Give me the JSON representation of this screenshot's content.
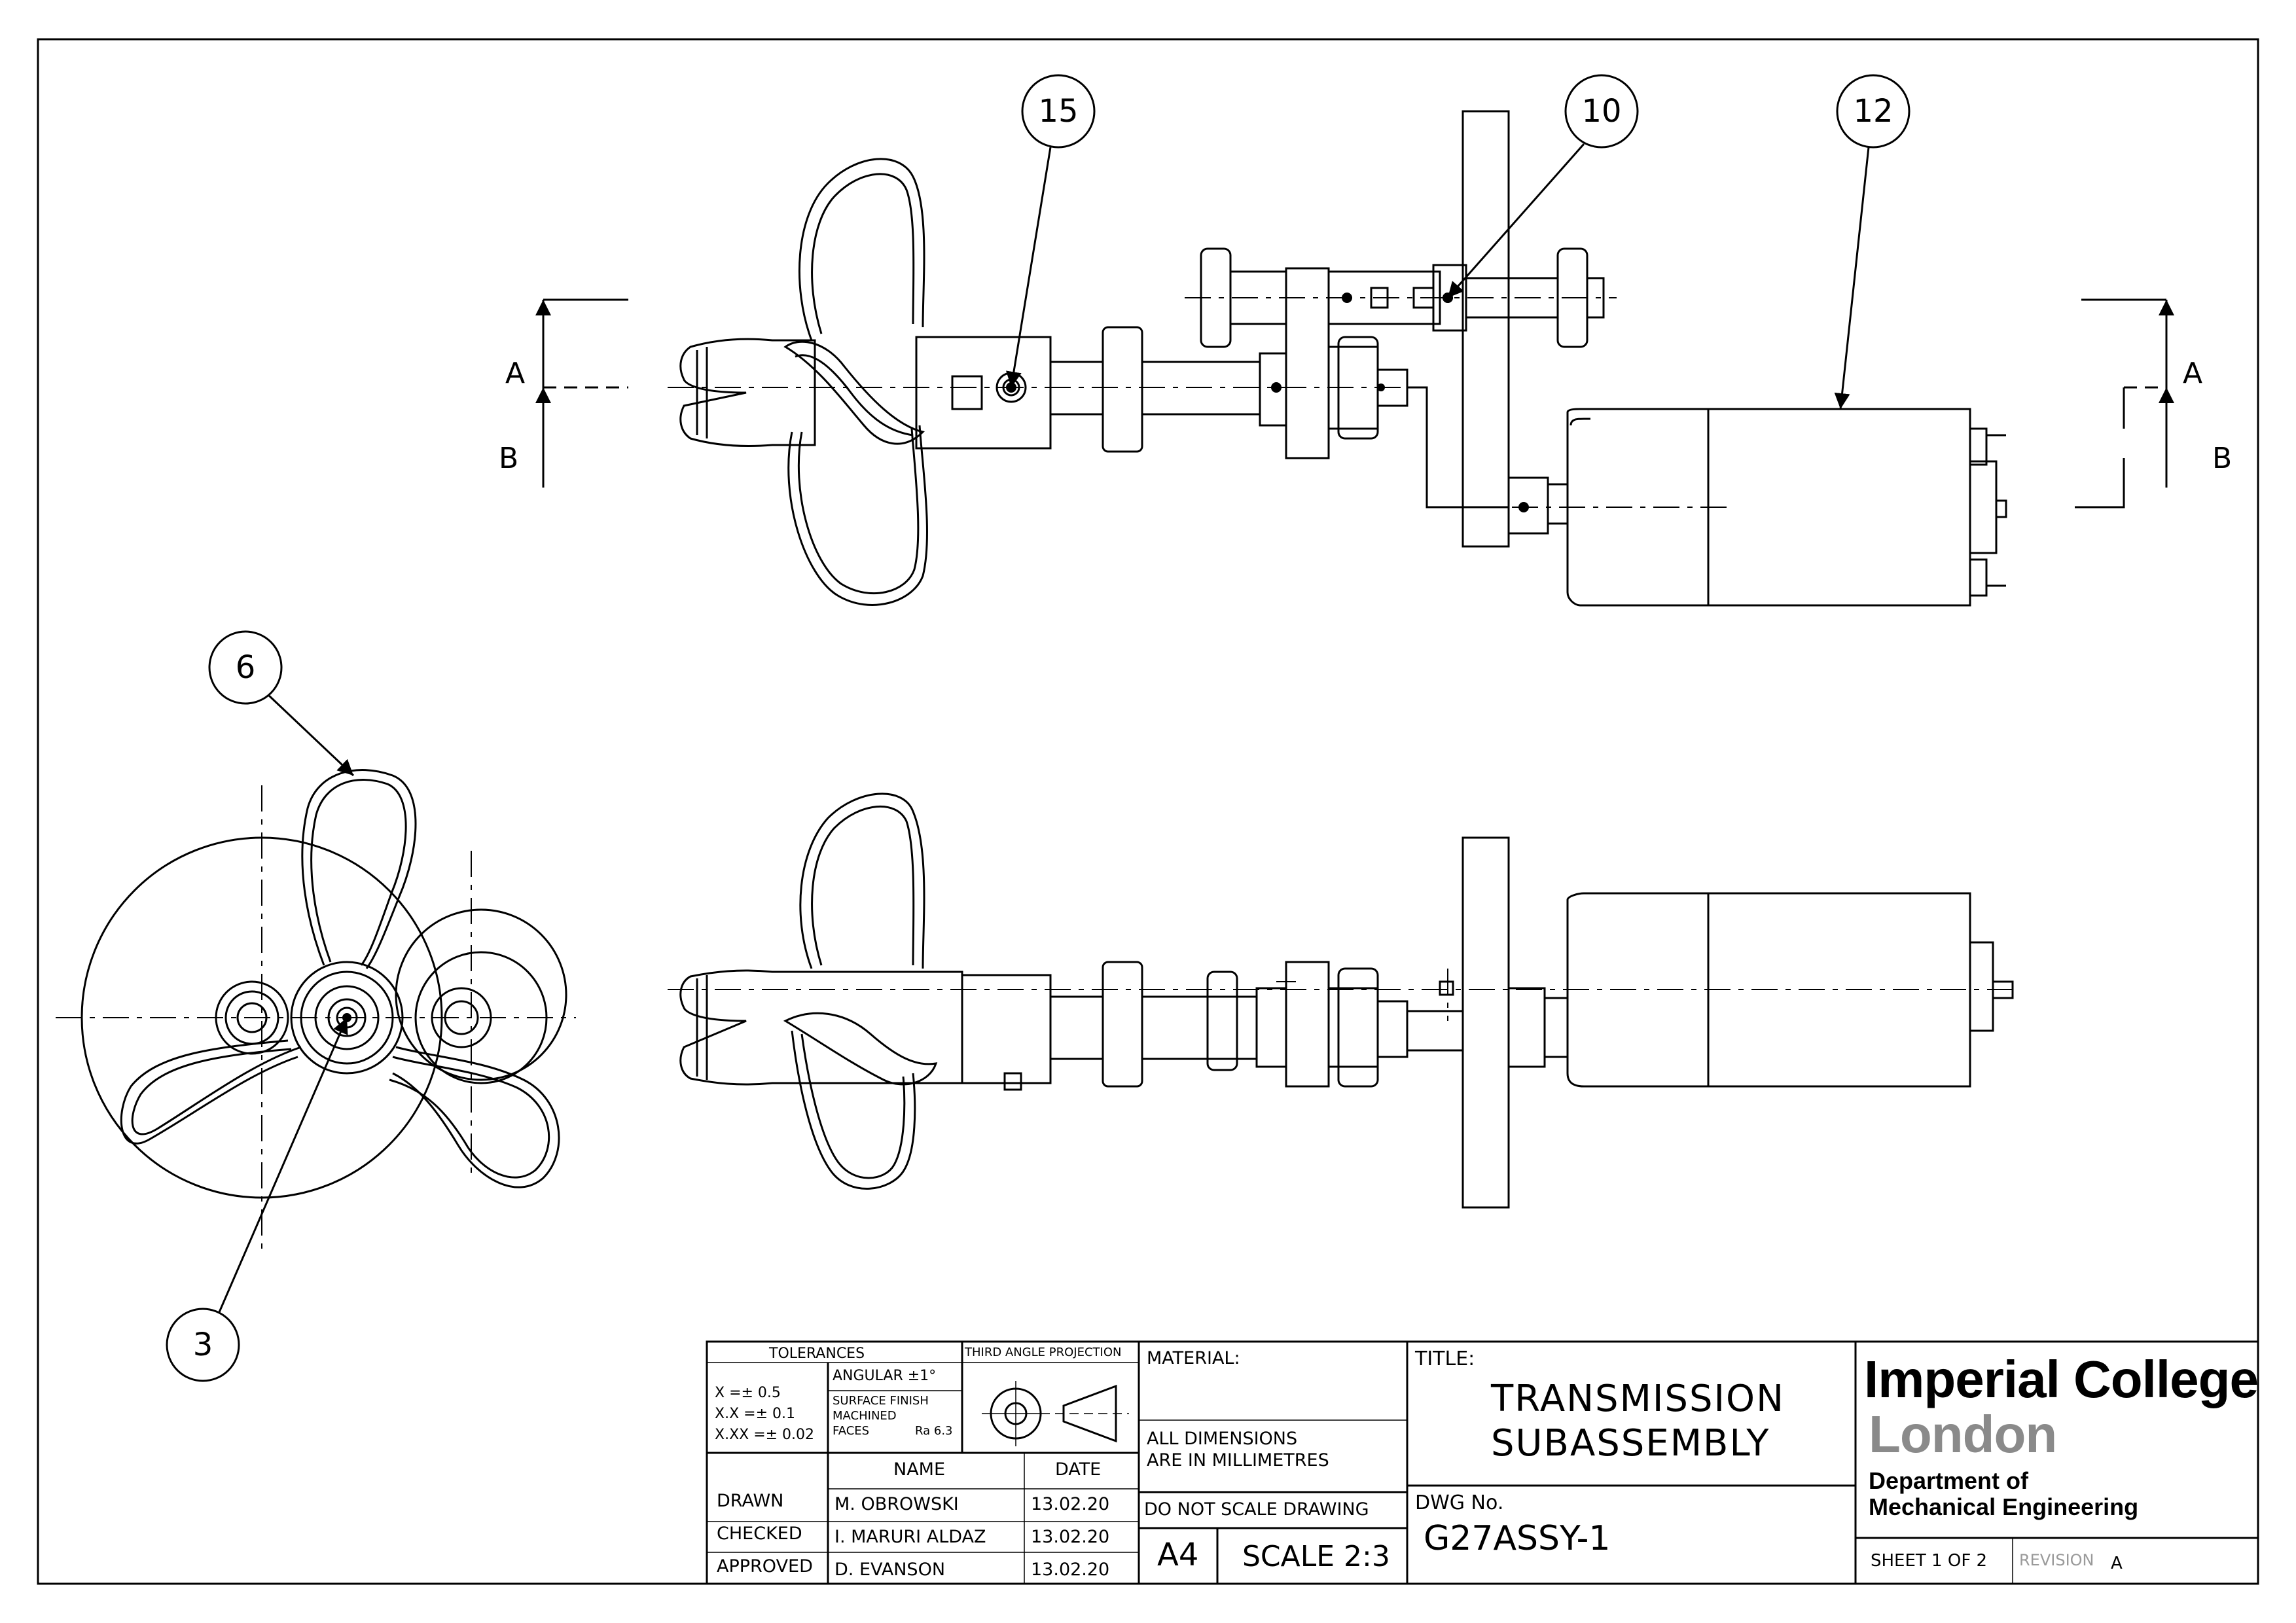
{
  "balloons": {
    "b15": "15",
    "b10": "10",
    "b12": "12",
    "b6": "6",
    "b3": "3"
  },
  "section_labels": {
    "left_top": "A",
    "left_bottom": "B",
    "right_top": "A",
    "right_bottom": "B"
  },
  "title_block": {
    "tolerances_header": "TOLERANCES",
    "tol_x": "X    =± 0.5",
    "tol_xx": "X.X  =± 0.1",
    "tol_xxx": "X.XX =± 0.02",
    "angular": "ANGULAR  ±1°",
    "surface_finish_1": "SURFACE FINISH",
    "surface_finish_2": "MACHINED",
    "surface_finish_3": "FACES",
    "surface_finish_ra": "Ra 6.3",
    "projection": "THIRD ANGLE PROJECTION",
    "name_header": "NAME",
    "date_header": "DATE",
    "drawn_label": "DRAWN",
    "drawn_name": "M. OBROWSKI",
    "drawn_date": "13.02.20",
    "checked_label": "CHECKED",
    "checked_name": "I. MARURI ALDAZ",
    "checked_date": "13.02.20",
    "approved_label": "APPROVED",
    "approved_name": "D. EVANSON",
    "approved_date": "13.02.20",
    "material_label": "MATERIAL:",
    "dims_note_1": "ALL DIMENSIONS",
    "dims_note_2": "ARE IN MILLIMETRES",
    "no_scale": "DO NOT SCALE DRAWING",
    "paper_size": "A4",
    "scale": "SCALE 2:3",
    "title_label": "TITLE:",
    "title_line1": "TRANSMISSION",
    "title_line2": "SUBASSEMBLY",
    "dwg_label": "DWG No.",
    "dwg_number": "G27ASSY-1",
    "logo_line1": "Imperial College",
    "logo_line2": "London",
    "dept_line1": "Department of",
    "dept_line2": "Mechanical Engineering",
    "sheet": "SHEET 1 OF 2",
    "revision_label": "REVISION",
    "revision": "A"
  }
}
